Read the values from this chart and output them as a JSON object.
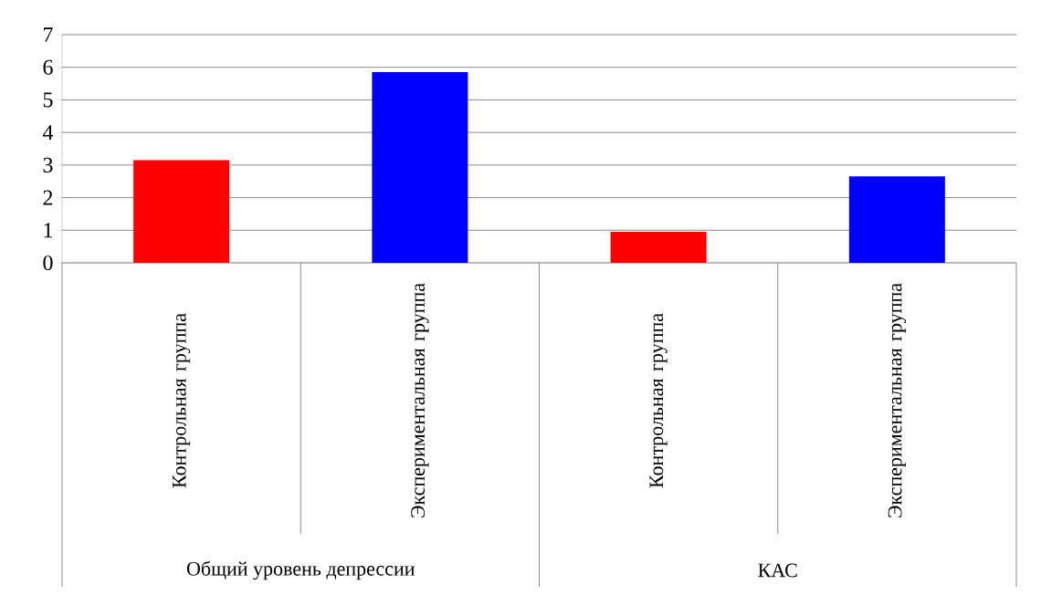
{
  "chart_data": {
    "type": "bar",
    "categories": [
      "Контрольная группа",
      "Экспериментальная группа",
      "Контрольная группа",
      "Экспериментальная группа"
    ],
    "values": [
      3.15,
      5.85,
      0.95,
      2.65
    ],
    "colors": [
      "#ff0000",
      "#0000ff",
      "#ff0000",
      "#0000ff"
    ],
    "ylim": [
      0,
      7
    ],
    "yticks": [
      0,
      1,
      2,
      3,
      4,
      5,
      6,
      7
    ],
    "grid": "y",
    "annotations": [
      "Общий уровень депрессии",
      "КАС"
    ]
  }
}
